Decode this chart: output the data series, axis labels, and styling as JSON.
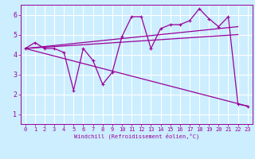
{
  "xlabel": "Windchill (Refroidissement éolien,°C)",
  "bg_color": "#cceeff",
  "grid_color": "#ffffff",
  "line_color": "#990099",
  "xlim": [
    -0.5,
    23.5
  ],
  "ylim": [
    0.5,
    6.5
  ],
  "xticks": [
    0,
    1,
    2,
    3,
    4,
    5,
    6,
    7,
    8,
    9,
    10,
    11,
    12,
    13,
    14,
    15,
    16,
    17,
    18,
    19,
    20,
    21,
    22,
    23
  ],
  "yticks": [
    1,
    2,
    3,
    4,
    5,
    6
  ],
  "series1_x": [
    0,
    1,
    2,
    3,
    4,
    5,
    6,
    7,
    8,
    9,
    10,
    11,
    12,
    13,
    14,
    15,
    16,
    17,
    18,
    19,
    20,
    21,
    22,
    23
  ],
  "series1_y": [
    4.3,
    4.6,
    4.3,
    4.3,
    4.1,
    2.2,
    4.3,
    3.7,
    2.5,
    3.1,
    4.9,
    5.9,
    5.9,
    4.3,
    5.3,
    5.5,
    5.5,
    5.7,
    6.3,
    5.8,
    5.4,
    5.9,
    1.5,
    1.4
  ],
  "series2_x": [
    0,
    23
  ],
  "series2_y": [
    4.3,
    1.4
  ],
  "series3_x": [
    0,
    22
  ],
  "series3_y": [
    4.3,
    5.4
  ],
  "series4_x": [
    0,
    22
  ],
  "series4_y": [
    4.3,
    5.0
  ]
}
